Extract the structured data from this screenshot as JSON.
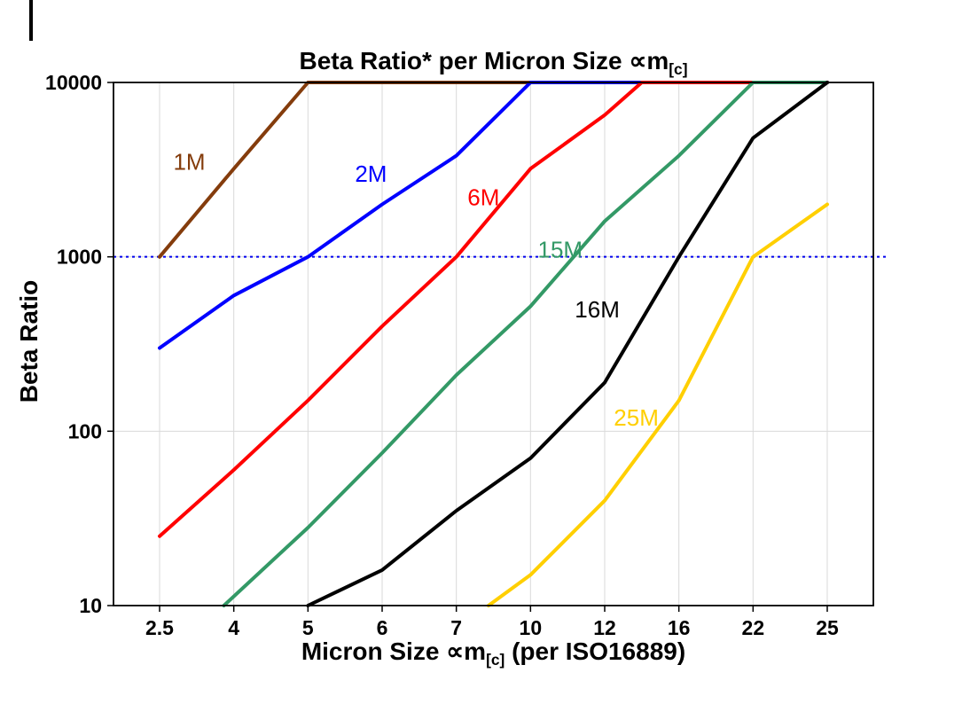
{
  "chart_data": {
    "type": "line",
    "title": {
      "main": "Beta Ratio* per Micron Size ∝m",
      "sub": "[c]"
    },
    "xlabel": {
      "pre": "Micron Size ∝m",
      "sub": "[c]",
      "post": " (per ISO16889)"
    },
    "ylabel": "Beta Ratio",
    "x_categories": [
      2.5,
      4,
      5,
      6,
      7,
      10,
      12,
      16,
      22,
      25
    ],
    "x_tick_labels": [
      "2.5",
      "4",
      "5",
      "6",
      "7",
      "10",
      "12",
      "16",
      "22",
      "25"
    ],
    "y_scale": "log",
    "ylim": [
      10,
      10000
    ],
    "y_ticks": [
      10,
      100,
      1000,
      10000
    ],
    "y_tick_labels": [
      "10",
      "100",
      "1000",
      "10000"
    ],
    "grid": {
      "color": "#d9d9d9",
      "vertical": true,
      "horizontal": true
    },
    "axis_color": "#000000",
    "reference_line": {
      "y": 1000,
      "color": "#0000ee",
      "style": "dotted"
    },
    "series": [
      {
        "name": "1M",
        "color": "#843c0c",
        "points": [
          [
            2.5,
            1000
          ],
          [
            4,
            3200
          ],
          [
            5,
            10000
          ],
          [
            25,
            10000
          ]
        ],
        "label_at": [
          3.1,
          3500
        ]
      },
      {
        "name": "2M",
        "color": "#0000ff",
        "points": [
          [
            2.5,
            300
          ],
          [
            4,
            600
          ],
          [
            5,
            1000
          ],
          [
            6,
            2000
          ],
          [
            7,
            3800
          ],
          [
            10,
            10000
          ],
          [
            25,
            10000
          ]
        ],
        "label_at": [
          5.85,
          3000
        ]
      },
      {
        "name": "6M",
        "color": "#ff0000",
        "points": [
          [
            2.5,
            25
          ],
          [
            4,
            60
          ],
          [
            5,
            150
          ],
          [
            6,
            400
          ],
          [
            7,
            1000
          ],
          [
            10,
            3200
          ],
          [
            12,
            6500
          ],
          [
            14,
            10000
          ],
          [
            25,
            10000
          ]
        ],
        "label_at": [
          8.1,
          2200
        ]
      },
      {
        "name": "15M",
        "color": "#339966",
        "points": [
          [
            3.8,
            10
          ],
          [
            5,
            28
          ],
          [
            6,
            75
          ],
          [
            7,
            210
          ],
          [
            10,
            520
          ],
          [
            12,
            1600
          ],
          [
            16,
            3800
          ],
          [
            22,
            10000
          ],
          [
            25,
            10000
          ]
        ],
        "label_at": [
          10.8,
          1100
        ]
      },
      {
        "name": "16M",
        "color": "#000000",
        "points": [
          [
            5,
            10
          ],
          [
            6,
            16
          ],
          [
            7,
            35
          ],
          [
            10,
            70
          ],
          [
            12,
            190
          ],
          [
            16,
            1000
          ],
          [
            22,
            4800
          ],
          [
            25,
            10000
          ]
        ],
        "label_at": [
          11.8,
          500
        ]
      },
      {
        "name": "25M",
        "color": "#ffcf00",
        "points": [
          [
            8.3,
            10
          ],
          [
            10,
            15
          ],
          [
            12,
            40
          ],
          [
            16,
            150
          ],
          [
            22,
            1000
          ],
          [
            25,
            2000
          ]
        ],
        "label_at": [
          13.7,
          120
        ]
      }
    ]
  }
}
